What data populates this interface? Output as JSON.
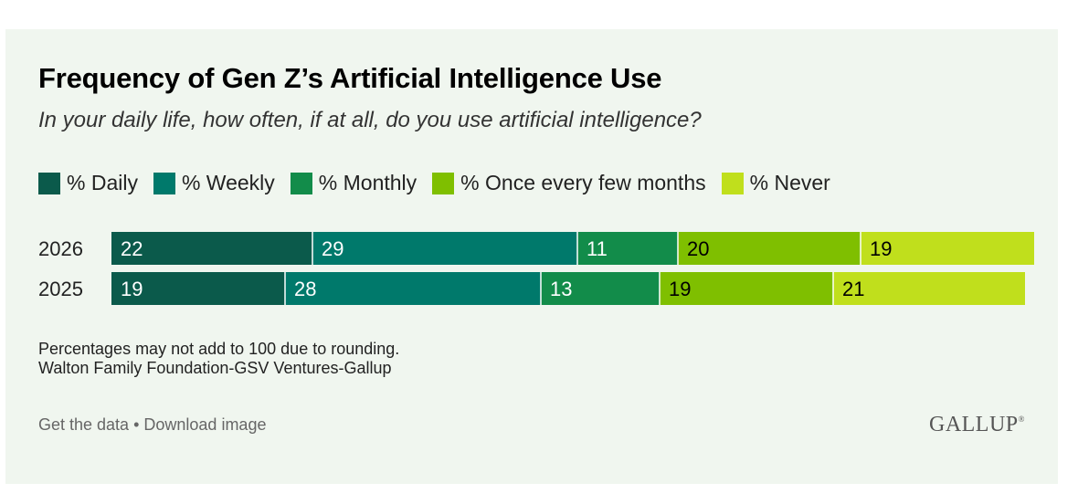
{
  "title": "Frequency of Gen Z’s Artificial Intelligence Use",
  "subtitle": "In your daily life, how often, if at all, do you use artificial intelligence?",
  "legend": [
    {
      "label": "% Daily",
      "color": "#0b5a4b"
    },
    {
      "label": "% Weekly",
      "color": "#00796b"
    },
    {
      "label": "% Monthly",
      "color": "#128c4a"
    },
    {
      "label": "% Once every few months",
      "color": "#7fbf00"
    },
    {
      "label": "% Never",
      "color": "#c0df1c"
    }
  ],
  "chart_data": {
    "type": "bar",
    "orientation": "horizontal",
    "stacked": true,
    "categories": [
      "2026",
      "2025"
    ],
    "series": [
      {
        "name": "% Daily",
        "values": [
          22,
          19
        ],
        "color": "#0b5a4b",
        "label_color": "#ffffff"
      },
      {
        "name": "% Weekly",
        "values": [
          29,
          28
        ],
        "color": "#00796b",
        "label_color": "#ffffff"
      },
      {
        "name": "% Monthly",
        "values": [
          11,
          13
        ],
        "color": "#128c4a",
        "label_color": "#ffffff"
      },
      {
        "name": "% Once every few months",
        "values": [
          20,
          19
        ],
        "color": "#7fbf00",
        "label_color": "#000000"
      },
      {
        "name": "% Never",
        "values": [
          19,
          21
        ],
        "color": "#c0df1c",
        "label_color": "#000000"
      }
    ],
    "xlim": [
      0,
      100
    ]
  },
  "notes": {
    "line1": "Percentages may not add to 100 due to rounding.",
    "line2": "Walton Family Foundation-GSV Ventures-Gallup"
  },
  "links": {
    "get_data": "Get the data",
    "separator": " • ",
    "download": "Download image"
  },
  "logo": {
    "text": "GALLUP",
    "mark": "®"
  }
}
